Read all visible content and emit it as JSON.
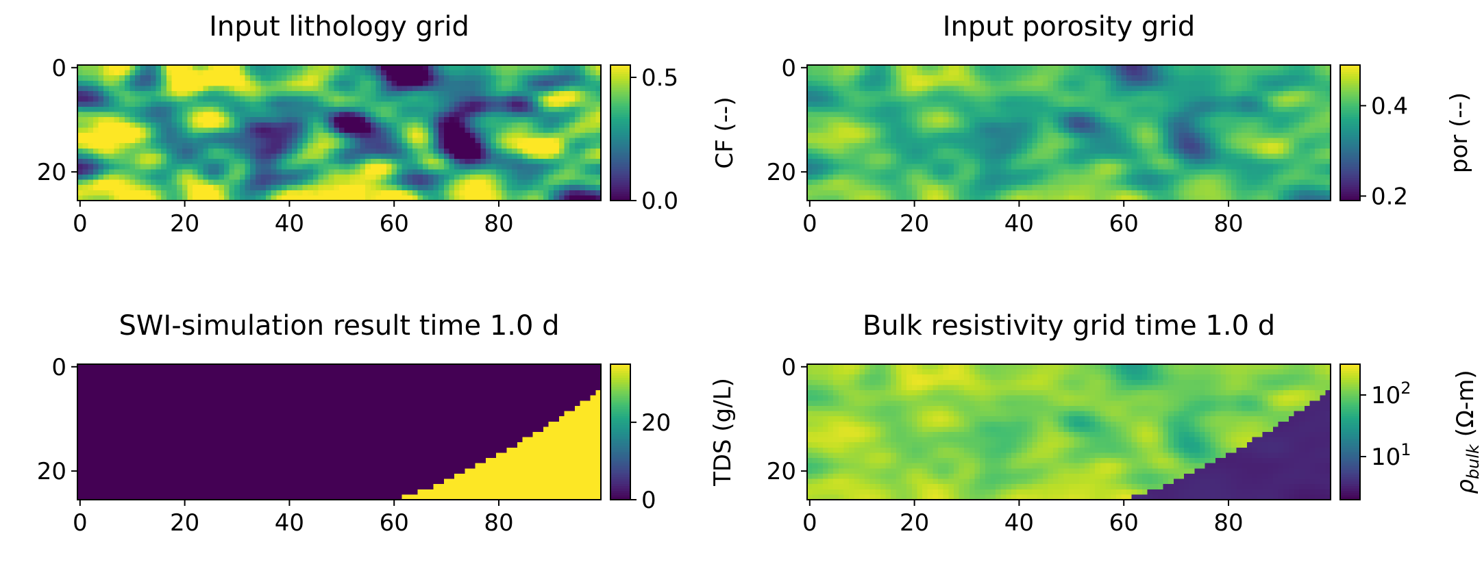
{
  "chart_data": [
    {
      "type": "heatmap",
      "title": "Input lithology grid",
      "x_ticks": [
        0,
        20,
        40,
        60,
        80
      ],
      "y_ticks": [
        0,
        20
      ],
      "xlim": [
        -0.5,
        99.5
      ],
      "ylim": [
        25.5,
        -0.5
      ],
      "grid_shape": [
        26,
        100
      ],
      "colormap": "viridis",
      "value_range": [
        0.0,
        0.55
      ],
      "colorbar": {
        "label": "CF (--)",
        "ticks": [
          "0.0",
          "0.5"
        ],
        "tick_values": [
          0.0,
          0.5
        ],
        "scale": "linear"
      },
      "field": "lithology"
    },
    {
      "type": "heatmap",
      "title": "Input porosity grid",
      "x_ticks": [
        0,
        20,
        40,
        60,
        80
      ],
      "y_ticks": [
        0,
        20
      ],
      "xlim": [
        -0.5,
        99.5
      ],
      "ylim": [
        25.5,
        -0.5
      ],
      "grid_shape": [
        26,
        100
      ],
      "colormap": "viridis",
      "value_range": [
        0.19,
        0.49
      ],
      "colorbar": {
        "label": "por (--)",
        "ticks": [
          "0.2",
          "0.4"
        ],
        "tick_values": [
          0.2,
          0.4
        ],
        "scale": "linear"
      },
      "field": "porosity"
    },
    {
      "type": "heatmap",
      "title": "SWI-simulation result time 1.0 d",
      "x_ticks": [
        0,
        20,
        40,
        60,
        80
      ],
      "y_ticks": [
        0,
        20
      ],
      "xlim": [
        -0.5,
        99.5
      ],
      "ylim": [
        25.5,
        -0.5
      ],
      "grid_shape": [
        26,
        100
      ],
      "colormap": "viridis",
      "value_range": [
        0,
        35
      ],
      "colorbar": {
        "label": "TDS (g/L)",
        "ticks": [
          "0",
          "20"
        ],
        "tick_values": [
          0,
          20
        ],
        "scale": "linear"
      },
      "field": "tds",
      "description_values": {
        "fresh_value": 0,
        "saline_value": 35
      }
    },
    {
      "type": "heatmap",
      "title": "Bulk resistivity grid time 1.0 d",
      "x_ticks": [
        0,
        20,
        40,
        60,
        80
      ],
      "y_ticks": [
        0,
        20
      ],
      "xlim": [
        -0.5,
        99.5
      ],
      "ylim": [
        25.5,
        -0.5
      ],
      "grid_shape": [
        26,
        100
      ],
      "colormap": "viridis",
      "value_range": [
        0.3,
        2.5
      ],
      "colorbar": {
        "label_main": "ρ",
        "label_sub": "bulk",
        "label_unit": " (Ω-m)",
        "ticks_base": [
          "10",
          "10"
        ],
        "ticks_exp": [
          "1",
          "2"
        ],
        "tick_values": [
          1,
          2
        ],
        "scale": "log"
      },
      "field": "resistivity"
    }
  ]
}
